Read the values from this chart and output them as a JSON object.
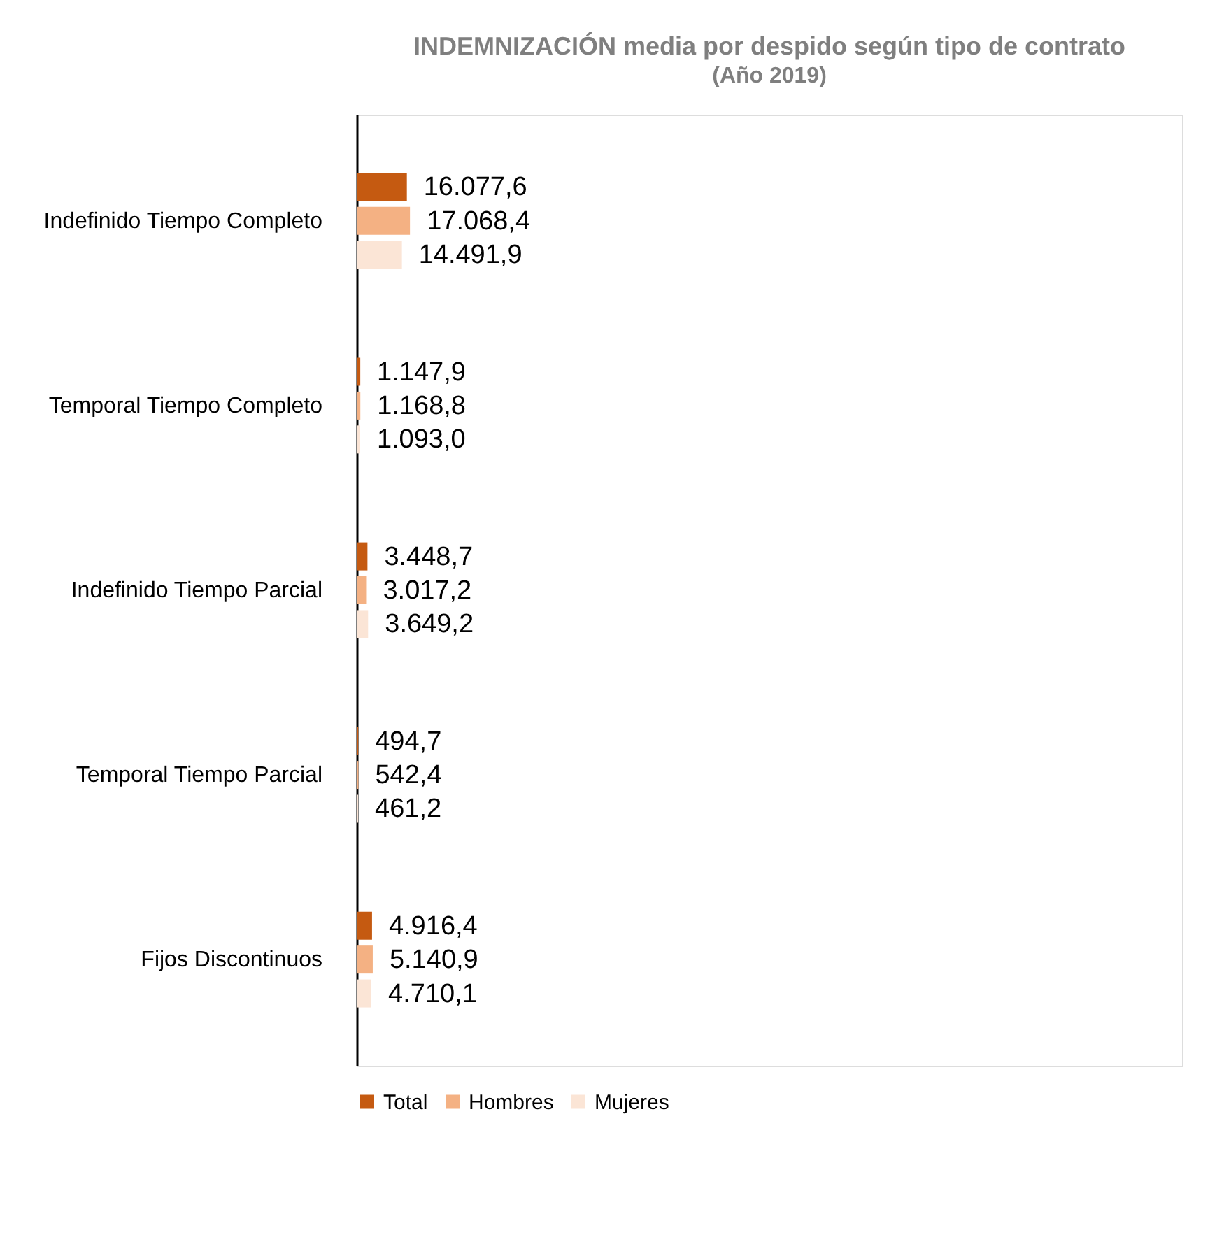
{
  "chart_data": {
    "type": "bar",
    "orientation": "horizontal",
    "title": "INDEMNIZACIÓN  media por despido según tipo de contrato",
    "subtitle": "(Año 2019)",
    "categories": [
      "Indefinido Tiempo Completo",
      "Temporal Tiempo Completo",
      "Indefinido Tiempo Parcial",
      "Temporal Tiempo Parcial",
      "Fijos Discontinuos"
    ],
    "series": [
      {
        "name": "Total",
        "color": "#c55a11",
        "values": [
          16077.6,
          1147.9,
          3448.7,
          494.7,
          4916.4
        ],
        "value_labels": [
          "16.077,6",
          "1.147,9",
          "3.448,7",
          "494,7",
          "4.916,4"
        ]
      },
      {
        "name": "Hombres",
        "color": "#f4b183",
        "values": [
          17068.4,
          1168.8,
          3017.2,
          542.4,
          5140.9
        ],
        "value_labels": [
          "17.068,4",
          "1.168,8",
          "3.017,2",
          "542,4",
          "5.140,9"
        ]
      },
      {
        "name": "Mujeres",
        "color": "#fbe5d6",
        "values": [
          14491.9,
          1093.0,
          3649.2,
          461.2,
          4710.1
        ],
        "value_labels": [
          "14.491,9",
          "1.093,0",
          "3.649,2",
          "461,2",
          "4.710,1"
        ]
      }
    ],
    "legend": "bottom"
  }
}
